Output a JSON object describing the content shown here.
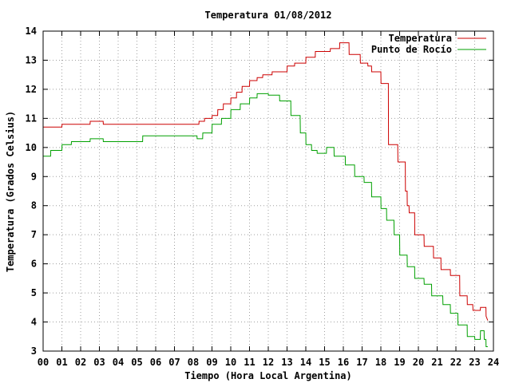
{
  "chart_data": {
    "type": "line",
    "title": "Temperatura 01/08/2012",
    "xlabel": "Tiempo (Hora Local Argentina)",
    "ylabel": "Temperatura (Grados Celsius)",
    "xlim": [
      0,
      24
    ],
    "ylim": [
      3,
      14
    ],
    "x_tick_labels": [
      "00",
      "01",
      "02",
      "03",
      "04",
      "05",
      "06",
      "07",
      "08",
      "09",
      "10",
      "11",
      "12",
      "13",
      "14",
      "15",
      "16",
      "17",
      "18",
      "19",
      "20",
      "21",
      "22",
      "23",
      "24"
    ],
    "y_ticks": [
      3,
      4,
      5,
      6,
      7,
      8,
      9,
      10,
      11,
      12,
      13,
      14
    ],
    "grid": true,
    "grid_style": "dotted",
    "legend_position": "top-right",
    "colors": {
      "Temperatura": "#cc0000",
      "Punto de Rocío": "#00a000"
    },
    "series": [
      {
        "name": "Temperatura",
        "x": [
          0,
          1,
          1.01,
          2.5,
          2.51,
          3.2,
          3.21,
          8.3,
          8.31,
          8.6,
          8.61,
          9,
          9.01,
          9.3,
          9.31,
          9.6,
          9.61,
          10,
          10.01,
          10.3,
          10.31,
          10.6,
          10.61,
          11,
          11.01,
          11.4,
          11.41,
          11.7,
          11.71,
          12.2,
          12.21,
          13,
          13.01,
          13.4,
          13.41,
          14,
          14.01,
          14.5,
          14.51,
          15.3,
          15.31,
          15.8,
          15.81,
          16.3,
          16.31,
          16.9,
          16.91,
          17.3,
          17.31,
          17.5,
          17.51,
          18,
          18.01,
          18.4,
          18.41,
          18.9,
          18.91,
          19.3,
          19.31,
          19.4,
          19.41,
          19.5,
          19.51,
          19.8,
          19.81,
          20.3,
          20.31,
          20.8,
          20.81,
          21.2,
          21.21,
          21.7,
          21.71,
          22.2,
          22.21,
          22.6,
          22.61,
          22.9,
          22.91,
          23.3,
          23.31,
          23.6,
          23.61,
          23.7
        ],
        "values": [
          10.7,
          10.7,
          10.8,
          10.8,
          10.9,
          10.9,
          10.8,
          10.8,
          10.9,
          10.9,
          11,
          11,
          11.1,
          11.1,
          11.3,
          11.3,
          11.5,
          11.5,
          11.7,
          11.7,
          11.9,
          11.9,
          12.1,
          12.1,
          12.3,
          12.3,
          12.4,
          12.4,
          12.5,
          12.5,
          12.6,
          12.6,
          12.8,
          12.8,
          12.9,
          12.9,
          13.1,
          13.1,
          13.3,
          13.3,
          13.4,
          13.4,
          13.6,
          13.6,
          13.2,
          13.2,
          12.9,
          12.9,
          12.8,
          12.8,
          12.6,
          12.6,
          12.2,
          12.2,
          10.1,
          10.1,
          9.5,
          9.5,
          8.5,
          8.5,
          8,
          8,
          7.75,
          7.75,
          7,
          7,
          6.6,
          6.6,
          6.2,
          6.2,
          5.8,
          5.8,
          5.6,
          5.6,
          4.9,
          4.9,
          4.6,
          4.6,
          4.4,
          4.4,
          4.5,
          4.5,
          4.2,
          4.05
        ]
      },
      {
        "name": "Punto de Rocío",
        "x": [
          0,
          0.4,
          0.41,
          1,
          1.01,
          1.5,
          1.51,
          2.5,
          2.51,
          3.2,
          3.21,
          5.3,
          5.31,
          8.2,
          8.21,
          8.5,
          8.51,
          9,
          9.01,
          9.5,
          9.51,
          10,
          10.01,
          10.5,
          10.51,
          11,
          11.01,
          11.4,
          11.41,
          12,
          12.01,
          12.6,
          12.61,
          13.2,
          13.21,
          13.7,
          13.71,
          14,
          14.01,
          14.3,
          14.31,
          14.6,
          14.61,
          15.1,
          15.11,
          15.5,
          15.51,
          16.1,
          16.11,
          16.6,
          16.61,
          17.1,
          17.11,
          17.5,
          17.51,
          18,
          18.01,
          18.3,
          18.31,
          18.7,
          18.71,
          19,
          19.01,
          19.4,
          19.41,
          19.8,
          19.81,
          20.3,
          20.31,
          20.7,
          20.71,
          21.3,
          21.31,
          21.7,
          21.71,
          22.1,
          22.11,
          22.6,
          22.61,
          23,
          23.01,
          23.3,
          23.31,
          23.5,
          23.51,
          23.6,
          23.61,
          23.7
        ],
        "values": [
          9.7,
          9.7,
          9.9,
          9.9,
          10.1,
          10.1,
          10.2,
          10.2,
          10.3,
          10.3,
          10.2,
          10.2,
          10.4,
          10.4,
          10.3,
          10.3,
          10.5,
          10.5,
          10.8,
          10.8,
          11,
          11,
          11.3,
          11.3,
          11.5,
          11.5,
          11.7,
          11.7,
          11.85,
          11.85,
          11.8,
          11.8,
          11.6,
          11.6,
          11.1,
          11.1,
          10.5,
          10.5,
          10.1,
          10.1,
          9.9,
          9.9,
          9.8,
          9.8,
          10,
          10,
          9.7,
          9.7,
          9.4,
          9.4,
          9,
          9,
          8.8,
          8.8,
          8.3,
          8.3,
          7.9,
          7.9,
          7.5,
          7.5,
          7,
          7,
          6.3,
          6.3,
          5.9,
          5.9,
          5.5,
          5.5,
          5.3,
          5.3,
          4.9,
          4.9,
          4.6,
          4.6,
          4.3,
          4.3,
          3.9,
          3.9,
          3.5,
          3.5,
          3.4,
          3.4,
          3.7,
          3.7,
          3.4,
          3.4,
          3.15,
          3.15
        ]
      }
    ]
  }
}
